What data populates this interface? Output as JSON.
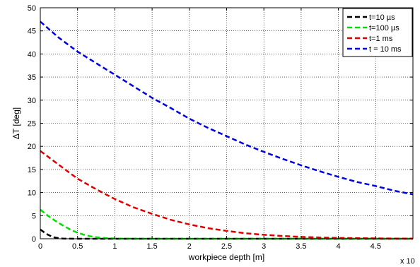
{
  "chart_data": {
    "type": "line",
    "title": "",
    "xlabel": "workpiece depth [m]",
    "ylabel": "ΔT [deg]",
    "x_multiplier_label": "x 10",
    "xlim": [
      0,
      5
    ],
    "ylim": [
      0,
      50
    ],
    "x_ticks": [
      0,
      0.5,
      1,
      1.5,
      2,
      2.5,
      3,
      3.5,
      4,
      4.5
    ],
    "x_tick_labels": [
      "0",
      "0.5",
      "1",
      "1.5",
      "2",
      "2.5",
      "3",
      "3.5",
      "4",
      "4.5"
    ],
    "y_ticks": [
      0,
      5,
      10,
      15,
      20,
      25,
      30,
      35,
      40,
      45,
      50
    ],
    "y_tick_labels": [
      "0",
      "5",
      "10",
      "15",
      "20",
      "25",
      "30",
      "35",
      "40",
      "45",
      "50"
    ],
    "grid": true,
    "legend_position": "top-right",
    "line_style": "dashed",
    "series": [
      {
        "name": "t=10 µs",
        "color": "#000000",
        "x": [
          0,
          0.05,
          0.1,
          0.15,
          0.2,
          0.25,
          0.3,
          0.35,
          0.4,
          0.5,
          0.6,
          0.8,
          1.0,
          1.5,
          2,
          2.5,
          3,
          3.5,
          4,
          4.5,
          5
        ],
        "y": [
          2.0,
          1.4,
          0.9,
          0.5,
          0.25,
          0.12,
          0.05,
          0.02,
          0.01,
          0,
          0,
          0,
          0,
          0,
          0,
          0,
          0,
          0,
          0,
          0,
          0
        ]
      },
      {
        "name": "t=100 µs",
        "color": "#00dd00",
        "x": [
          0,
          0.1,
          0.2,
          0.3,
          0.4,
          0.5,
          0.6,
          0.7,
          0.8,
          0.9,
          1.0,
          1.1,
          1.2,
          1.5,
          2,
          2.5,
          3,
          3.5,
          4,
          4.5,
          5
        ],
        "y": [
          6.3,
          5.0,
          3.9,
          2.9,
          2.0,
          1.3,
          0.8,
          0.45,
          0.25,
          0.12,
          0.05,
          0.02,
          0.01,
          0,
          0,
          0,
          0,
          0,
          0,
          0,
          0
        ]
      },
      {
        "name": "t=1 ms",
        "color": "#dd0000",
        "x": [
          0,
          0.25,
          0.5,
          0.75,
          1.0,
          1.25,
          1.5,
          1.75,
          2.0,
          2.25,
          2.5,
          2.75,
          3.0,
          3.25,
          3.5,
          3.75,
          4.0,
          4.25,
          4.5,
          4.75,
          5.0
        ],
        "y": [
          19,
          16,
          13,
          10.7,
          8.6,
          6.8,
          5.4,
          4.1,
          3.1,
          2.3,
          1.7,
          1.2,
          0.85,
          0.6,
          0.4,
          0.28,
          0.18,
          0.12,
          0.08,
          0.05,
          0.03
        ]
      },
      {
        "name": "t = 10 ms",
        "color": "#0000dd",
        "x": [
          0,
          0.25,
          0.5,
          0.75,
          1.0,
          1.25,
          1.5,
          1.75,
          2.0,
          2.25,
          2.5,
          2.75,
          3.0,
          3.25,
          3.5,
          3.75,
          4.0,
          4.25,
          4.5,
          4.75,
          5.0
        ],
        "y": [
          47,
          43.5,
          40.5,
          38,
          35.5,
          33,
          30.5,
          28.3,
          26,
          24,
          22.2,
          20.4,
          18.8,
          17.3,
          15.9,
          14.6,
          13.4,
          12.3,
          11.4,
          10.4,
          9.6
        ]
      }
    ]
  }
}
